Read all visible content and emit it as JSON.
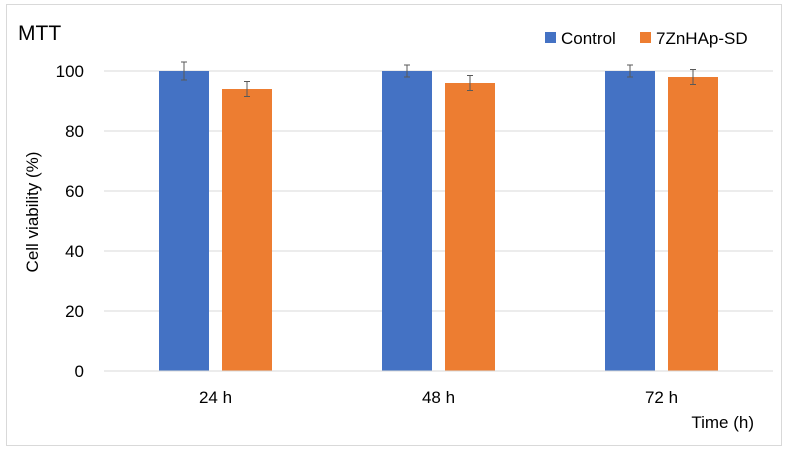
{
  "chart_data": {
    "type": "bar",
    "title": "MTT",
    "xlabel": "Time (h)",
    "ylabel": "Cell viability (%)",
    "categories": [
      "24 h",
      "48 h",
      "72 h"
    ],
    "ylim": [
      0,
      100
    ],
    "yticks": [
      0,
      20,
      40,
      60,
      80,
      100
    ],
    "grid": true,
    "legend_position": "top-right",
    "series": [
      {
        "name": "Control",
        "values": [
          100,
          100,
          100
        ],
        "errors": [
          3,
          2,
          2
        ],
        "color": "#4472C4"
      },
      {
        "name": "7ZnHAp-SD",
        "values": [
          94,
          96,
          98
        ],
        "errors": [
          2.5,
          2.5,
          2.5
        ],
        "color": "#ED7D31"
      }
    ]
  }
}
